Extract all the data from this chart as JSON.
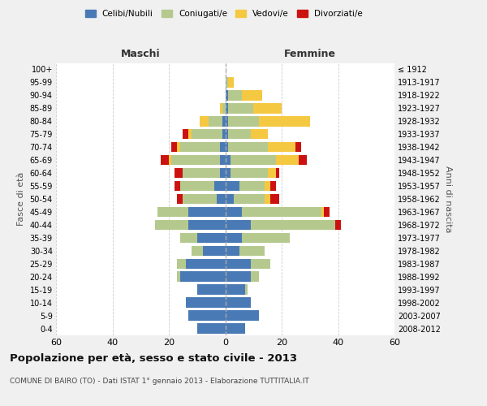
{
  "age_groups": [
    "0-4",
    "5-9",
    "10-14",
    "15-19",
    "20-24",
    "25-29",
    "30-34",
    "35-39",
    "40-44",
    "45-49",
    "50-54",
    "55-59",
    "60-64",
    "65-69",
    "70-74",
    "75-79",
    "80-84",
    "85-89",
    "90-94",
    "95-99",
    "100+"
  ],
  "birth_years": [
    "2008-2012",
    "2003-2007",
    "1998-2002",
    "1993-1997",
    "1988-1992",
    "1983-1987",
    "1978-1982",
    "1973-1977",
    "1968-1972",
    "1963-1967",
    "1958-1962",
    "1953-1957",
    "1948-1952",
    "1943-1947",
    "1938-1942",
    "1933-1937",
    "1928-1932",
    "1923-1927",
    "1918-1922",
    "1913-1917",
    "≤ 1912"
  ],
  "colors": {
    "celibi": "#4a7ab5",
    "coniugati": "#b5c98e",
    "vedovi": "#f5c842",
    "divorziati": "#cc1111"
  },
  "maschi": {
    "celibi": [
      10,
      13,
      14,
      10,
      16,
      14,
      8,
      10,
      13,
      13,
      3,
      4,
      2,
      2,
      2,
      1,
      1,
      0,
      0,
      0,
      0
    ],
    "coniugati": [
      0,
      0,
      0,
      0,
      1,
      3,
      4,
      6,
      12,
      11,
      12,
      12,
      13,
      17,
      14,
      11,
      5,
      1,
      0,
      0,
      0
    ],
    "vedovi": [
      0,
      0,
      0,
      0,
      0,
      0,
      0,
      0,
      0,
      0,
      0,
      0,
      0,
      1,
      1,
      1,
      3,
      1,
      0,
      0,
      0
    ],
    "divorziati": [
      0,
      0,
      0,
      0,
      0,
      0,
      0,
      0,
      0,
      0,
      2,
      2,
      3,
      3,
      2,
      2,
      0,
      0,
      0,
      0,
      0
    ]
  },
  "femmine": {
    "celibi": [
      7,
      12,
      9,
      7,
      9,
      9,
      5,
      6,
      9,
      6,
      3,
      5,
      2,
      2,
      1,
      1,
      1,
      1,
      1,
      0,
      0
    ],
    "coniugati": [
      0,
      0,
      0,
      1,
      3,
      7,
      9,
      17,
      30,
      28,
      11,
      9,
      13,
      16,
      14,
      8,
      11,
      9,
      5,
      1,
      0
    ],
    "vedovi": [
      0,
      0,
      0,
      0,
      0,
      0,
      0,
      0,
      0,
      1,
      2,
      2,
      3,
      8,
      10,
      6,
      18,
      10,
      7,
      2,
      0
    ],
    "divorziati": [
      0,
      0,
      0,
      0,
      0,
      0,
      0,
      0,
      2,
      2,
      3,
      2,
      1,
      3,
      2,
      0,
      0,
      0,
      0,
      0,
      0
    ]
  },
  "xlim": 60,
  "title": "Popolazione per età, sesso e stato civile - 2013",
  "subtitle": "COMUNE DI BAIRO (TO) - Dati ISTAT 1° gennaio 2013 - Elaborazione TUTTITALIA.IT",
  "ylabel_left": "Fasce di età",
  "ylabel_right": "Anni di nascita",
  "xlabel_maschi": "Maschi",
  "xlabel_femmine": "Femmine",
  "bg_color": "#f0f0f0",
  "plot_bg": "#ffffff",
  "legend_labels": [
    "Celibi/Nubili",
    "Coniugati/e",
    "Vedovi/e",
    "Divorziati/e"
  ]
}
